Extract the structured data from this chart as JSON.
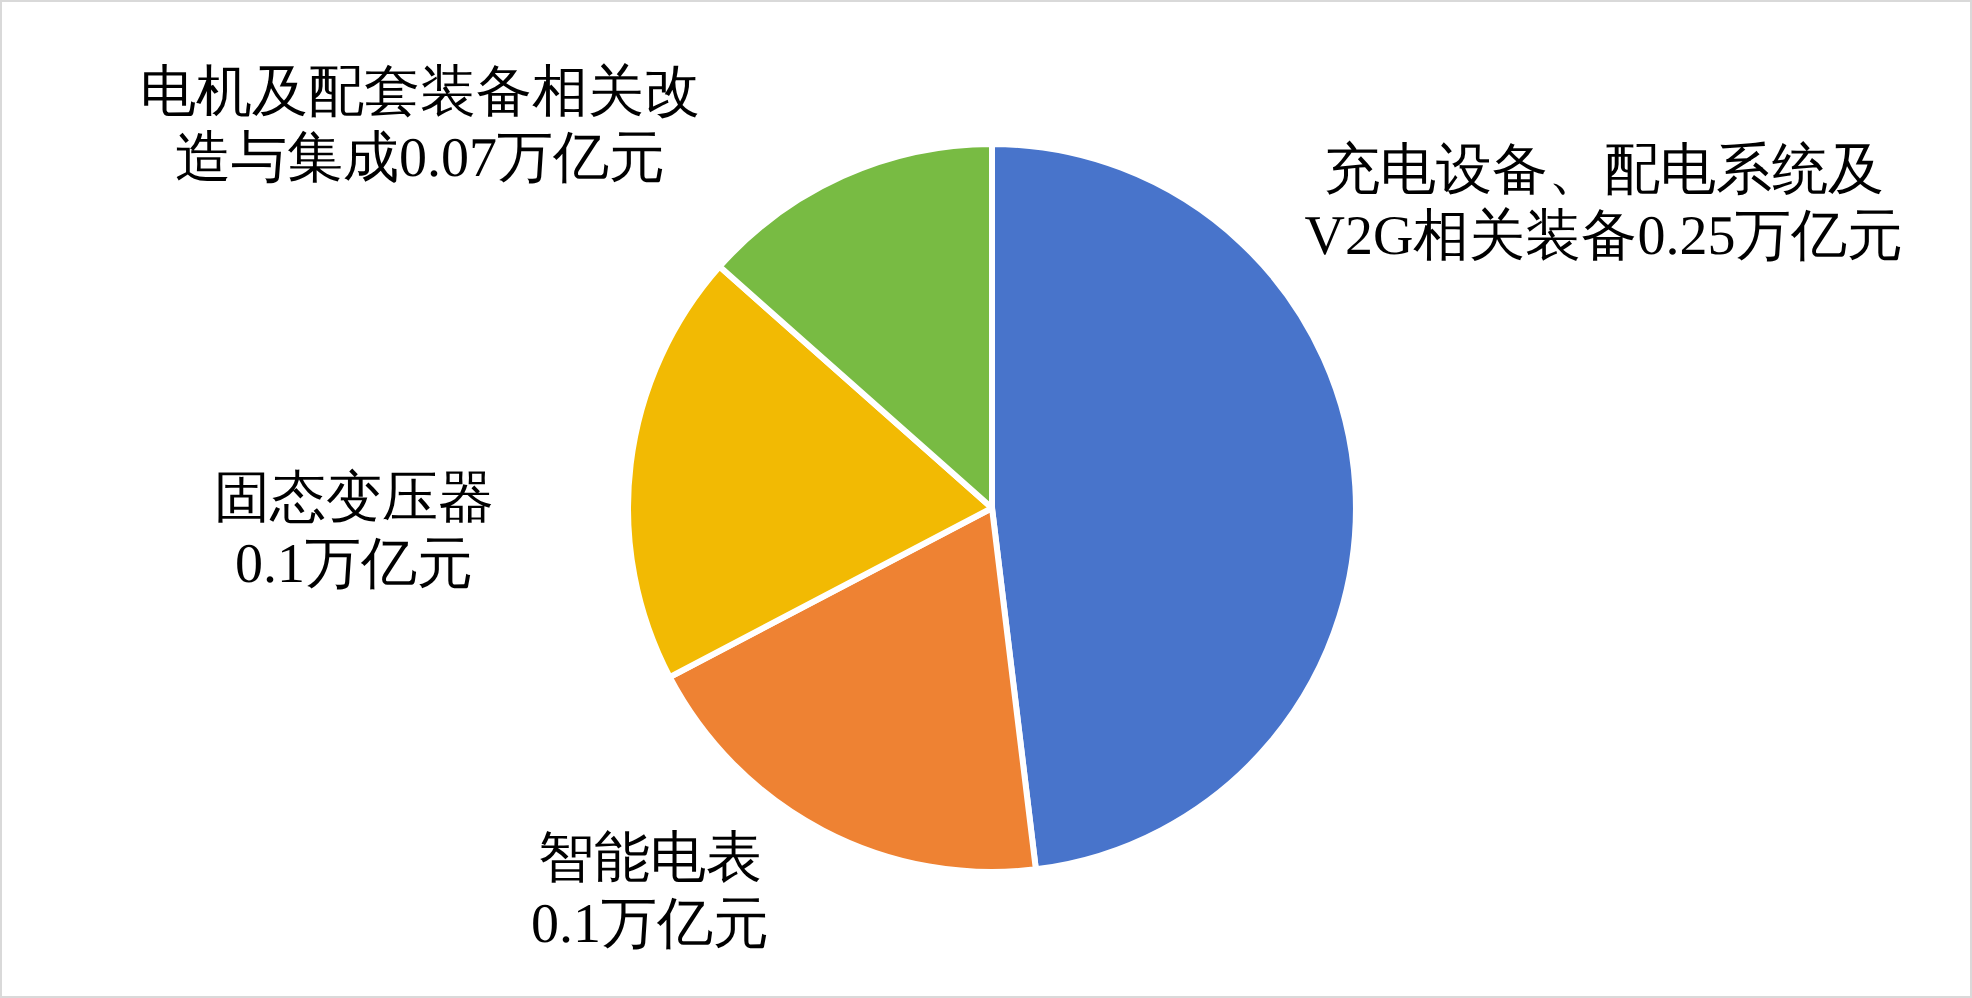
{
  "chart_data": {
    "type": "pie",
    "categories": [
      "充电设备、配电系统及V2G相关装备",
      "智能电表",
      "固态变压器",
      "电机及配套装备相关改造与集成"
    ],
    "values": [
      0.25,
      0.1,
      0.1,
      0.07
    ],
    "colors": [
      "#4874cb",
      "#ee8233",
      "#f2ba03",
      "#78bb43"
    ],
    "value_labels": [
      "0.25万亿元",
      "0.1万亿元",
      "0.1万亿元",
      "0.07万亿元"
    ]
  }
}
